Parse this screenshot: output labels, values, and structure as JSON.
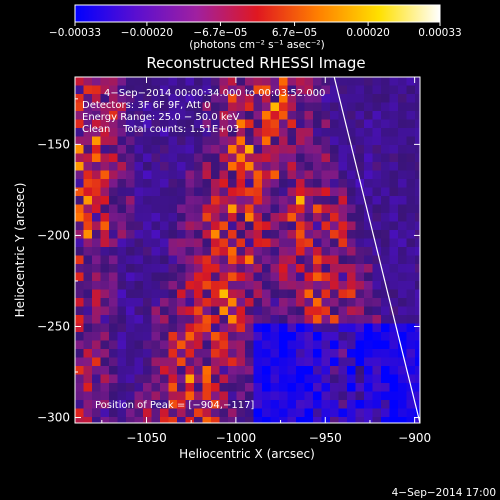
{
  "chart_data": {
    "type": "heatmap",
    "title": "Reconstructed RHESSI Image",
    "xlabel": "Heliocentric X (arcsec)",
    "ylabel": "Heliocentric Y (arcsec)",
    "xlim": [
      -1090,
      -897
    ],
    "ylim": [
      -303,
      -113
    ],
    "x_ticks": [
      {
        "value": -1050,
        "label": "−1050"
      },
      {
        "value": -1000,
        "label": "−1000"
      },
      {
        "value": -950,
        "label": "−950"
      },
      {
        "value": -900,
        "label": "−900"
      }
    ],
    "y_ticks": [
      {
        "value": -150,
        "label": "−150"
      },
      {
        "value": -200,
        "label": "−200"
      },
      {
        "value": -250,
        "label": "−250"
      },
      {
        "value": -300,
        "label": "−300"
      }
    ],
    "colorbar": {
      "range": [
        -0.00033,
        0.00033
      ],
      "ticks": [
        {
          "value": -0.00033,
          "label": "−0.00033"
        },
        {
          "value": -0.0002,
          "label": "−0.00020"
        },
        {
          "value": -6.7e-05,
          "label": "−6.7e−05"
        },
        {
          "value": 6.7e-05,
          "label": "6.7e−05"
        },
        {
          "value": 0.0002,
          "label": "0.00020"
        },
        {
          "value": 0.00033,
          "label": "0.00033"
        }
      ],
      "unit_label": "(photons cm⁻² s⁻¹ asec⁻²)",
      "colors": [
        "#0000ff",
        "#5a0fd0",
        "#a020a0",
        "#e01820",
        "#ff8000",
        "#ffe000",
        "#ffffff"
      ]
    },
    "info_lines": [
      "4−Sep−2014 00:00:34.000 to 00:03:52.000",
      "Detectors: 3F 6F 9F, Att 0",
      "Energy Range: 25.0 − 50.0 keV",
      "Clean    Total counts: 1.51E+03"
    ],
    "peak_label": "Position of Peak = [−904,−117]",
    "limb_line": [
      [
        -945,
        -113
      ],
      [
        -897,
        -303
      ]
    ],
    "grid": false
  },
  "timestamp": "4−Sep−2014 17:00"
}
